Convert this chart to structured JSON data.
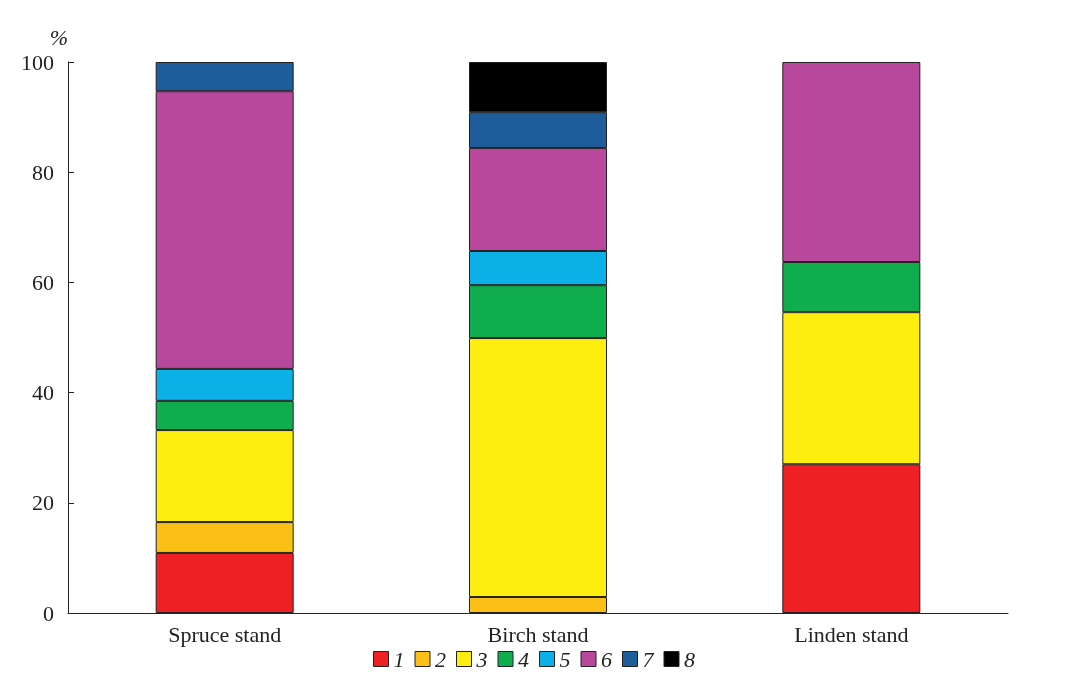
{
  "chart_data": {
    "type": "bar",
    "stacked": true,
    "ylabel": "%",
    "categories": [
      "Spruce stand",
      "Birch stand",
      "Linden stand"
    ],
    "ylim": [
      0,
      100
    ],
    "yticks": [
      0,
      20,
      40,
      60,
      80,
      100
    ],
    "grid": false,
    "legend": "bottom",
    "series": [
      {
        "name": "1",
        "color": "#ee2024",
        "values": [
          10.9,
          null,
          27.0
        ]
      },
      {
        "name": "2",
        "color": "#fbbf16",
        "values": [
          5.6,
          2.9,
          null
        ]
      },
      {
        "name": "3",
        "color": "#fdee10",
        "values": [
          16.7,
          47.0,
          27.6
        ]
      },
      {
        "name": "4",
        "color": "#10ad4f",
        "values": [
          5.3,
          9.6,
          9.1
        ]
      },
      {
        "name": "5",
        "color": "#0ab0e6",
        "values": [
          5.8,
          6.2,
          null
        ]
      },
      {
        "name": "6",
        "color": "#b8489b",
        "values": [
          50.4,
          18.7,
          36.3
        ]
      },
      {
        "name": "7",
        "color": "#1e5c9c",
        "values": [
          5.3,
          6.5,
          null
        ]
      },
      {
        "name": "8",
        "color": "#000000",
        "values": [
          null,
          9.1,
          null
        ]
      }
    ]
  }
}
